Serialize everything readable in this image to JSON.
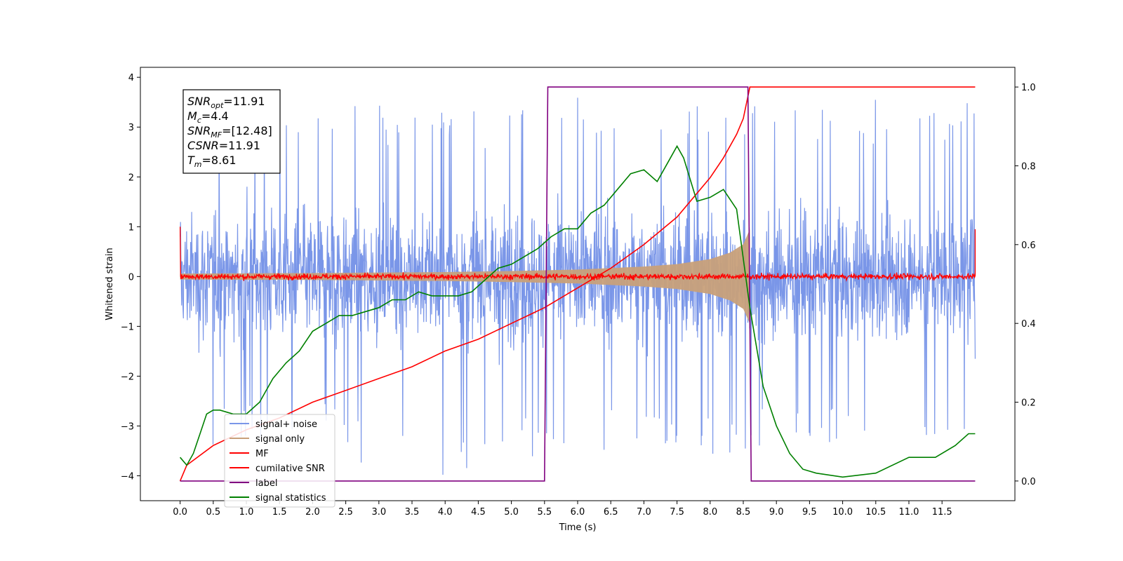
{
  "chart_data": {
    "type": "line",
    "xlabel": "Time (s)",
    "ylabel": "Whitened strain",
    "ylabel_right": "",
    "xlim": [
      -0.6,
      12.6
    ],
    "ylim": [
      -4.5,
      4.2
    ],
    "ylim_right": [
      -0.05,
      1.05
    ],
    "x_ticks": [
      "0.0",
      "0.5",
      "1.0",
      "1.5",
      "2.0",
      "2.5",
      "3.0",
      "3.5",
      "4.0",
      "4.5",
      "5.0",
      "5.5",
      "6.0",
      "6.5",
      "7.0",
      "7.5",
      "8.0",
      "8.5",
      "9.0",
      "9.5",
      "10.0",
      "10.5",
      "11.0",
      "11.5"
    ],
    "y_ticks": [
      "4",
      "3",
      "2",
      "1",
      "0",
      "−1",
      "−2",
      "−3",
      "−4"
    ],
    "y_ticks_right": [
      "1.0",
      "0.8",
      "0.6",
      "0.4",
      "0.2",
      "0.0"
    ],
    "grid": false,
    "legend_position": "lower-left",
    "annotation": [
      {
        "sym": "SNR",
        "sub": "opt",
        "val": "=11.91"
      },
      {
        "sym": "M",
        "sub": "c",
        "val": "=4.4"
      },
      {
        "sym": "SNR",
        "sub": "MF",
        "val": "=[12.48]"
      },
      {
        "sym": "CSNR",
        "sub": "",
        "val": "=11.91"
      },
      {
        "sym": "T",
        "sub": "m",
        "val": "=8.61"
      }
    ],
    "series": [
      {
        "name": "signal+ noise",
        "axis": "left",
        "color": "#7a96e8",
        "envelope_x": [
          0.0,
          1.0,
          2.0,
          3.0,
          4.0,
          5.0,
          6.0,
          7.0,
          8.0,
          9.0,
          10.0,
          11.0,
          12.0
        ],
        "envelope_upper": [
          3.3,
          3.5,
          3.6,
          3.5,
          3.4,
          3.45,
          3.6,
          3.5,
          3.6,
          3.4,
          3.5,
          3.6,
          3.6
        ],
        "envelope_lower": [
          -3.8,
          -3.2,
          -3.3,
          -3.9,
          -4.1,
          -3.7,
          -3.5,
          -3.6,
          -3.8,
          -3.4,
          -3.5,
          -3.5,
          -3.7
        ],
        "band_upper": 2.2,
        "band_lower": -2.2
      },
      {
        "name": "signal only",
        "axis": "left",
        "color": "#c8a07a",
        "x": [
          0.0,
          2.0,
          4.0,
          5.0,
          6.0,
          7.0,
          7.5,
          8.0,
          8.3,
          8.5,
          8.6
        ],
        "amplitude": [
          0.06,
          0.07,
          0.09,
          0.11,
          0.14,
          0.2,
          0.25,
          0.35,
          0.48,
          0.65,
          0.95
        ]
      },
      {
        "name": "MF",
        "axis": "left",
        "color": "#ff0000",
        "x": [
          0.0,
          12.0
        ],
        "band_upper": 0.12,
        "band_lower": -0.12,
        "edge_spikes": [
          1.0,
          0.95
        ]
      },
      {
        "name": "cumilative SNR",
        "axis": "right",
        "color": "#ff0000",
        "x": [
          0.0,
          0.1,
          0.5,
          1.0,
          1.5,
          2.0,
          2.5,
          3.0,
          3.5,
          4.0,
          4.5,
          5.0,
          5.5,
          6.0,
          6.5,
          7.0,
          7.5,
          8.0,
          8.2,
          8.4,
          8.5,
          8.6,
          12.0
        ],
        "values": [
          0.0,
          0.04,
          0.09,
          0.13,
          0.16,
          0.2,
          0.23,
          0.26,
          0.29,
          0.33,
          0.36,
          0.4,
          0.44,
          0.49,
          0.54,
          0.6,
          0.67,
          0.77,
          0.82,
          0.88,
          0.92,
          1.0,
          1.0
        ]
      },
      {
        "name": "label",
        "axis": "right",
        "color": "#800080",
        "x": [
          0.0,
          5.5,
          5.55,
          8.57,
          8.62,
          11.0,
          12.0
        ],
        "values": [
          0.0,
          0.0,
          1.0,
          1.0,
          0.0,
          0.0,
          0.0
        ]
      },
      {
        "name": "signal statistics",
        "axis": "right",
        "color": "#008000",
        "x": [
          0.0,
          0.1,
          0.2,
          0.3,
          0.4,
          0.5,
          0.6,
          0.8,
          1.0,
          1.2,
          1.4,
          1.6,
          1.8,
          2.0,
          2.2,
          2.4,
          2.6,
          2.8,
          3.0,
          3.2,
          3.4,
          3.6,
          3.8,
          4.0,
          4.2,
          4.4,
          4.6,
          4.8,
          5.0,
          5.2,
          5.4,
          5.6,
          5.8,
          6.0,
          6.2,
          6.4,
          6.6,
          6.8,
          7.0,
          7.2,
          7.4,
          7.5,
          7.6,
          7.8,
          8.0,
          8.2,
          8.4,
          8.6,
          8.8,
          9.0,
          9.2,
          9.4,
          9.6,
          10.0,
          10.5,
          11.0,
          11.4,
          11.7,
          11.9,
          12.0
        ],
        "values": [
          0.06,
          0.04,
          0.07,
          0.12,
          0.17,
          0.18,
          0.18,
          0.17,
          0.17,
          0.2,
          0.26,
          0.3,
          0.33,
          0.38,
          0.4,
          0.42,
          0.42,
          0.43,
          0.44,
          0.46,
          0.46,
          0.48,
          0.47,
          0.47,
          0.47,
          0.48,
          0.51,
          0.54,
          0.55,
          0.57,
          0.59,
          0.62,
          0.64,
          0.64,
          0.68,
          0.7,
          0.74,
          0.78,
          0.79,
          0.76,
          0.82,
          0.85,
          0.82,
          0.71,
          0.72,
          0.74,
          0.69,
          0.44,
          0.24,
          0.14,
          0.07,
          0.03,
          0.02,
          0.01,
          0.02,
          0.06,
          0.06,
          0.09,
          0.12,
          0.12
        ]
      }
    ]
  }
}
